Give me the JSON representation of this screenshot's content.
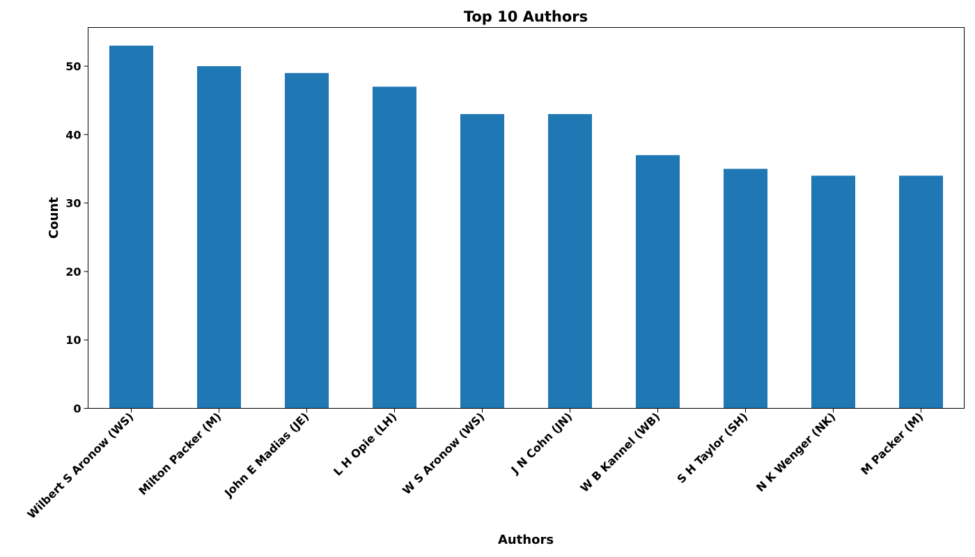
{
  "chart_data": {
    "type": "bar",
    "title": "Top 10 Authors",
    "xlabel": "Authors",
    "ylabel": "Count",
    "categories": [
      "Wilbert S Aronow (WS)",
      "Milton Packer (M)",
      "John E Madias (JE)",
      "L H Opie (LH)",
      "W S Aronow (WS)",
      "J N Cohn (JN)",
      "W B Kannel (WB)",
      "S H Taylor (SH)",
      "N K Wenger (NK)",
      "M Packer (M)"
    ],
    "values": [
      53,
      50,
      49,
      47,
      43,
      43,
      37,
      35,
      34,
      34
    ],
    "ylim": [
      0,
      55.65
    ],
    "yticks": [
      "0",
      "10",
      "20",
      "30",
      "40",
      "50"
    ],
    "grid": false,
    "legend": "none",
    "bar_color": "#1f77b4"
  }
}
